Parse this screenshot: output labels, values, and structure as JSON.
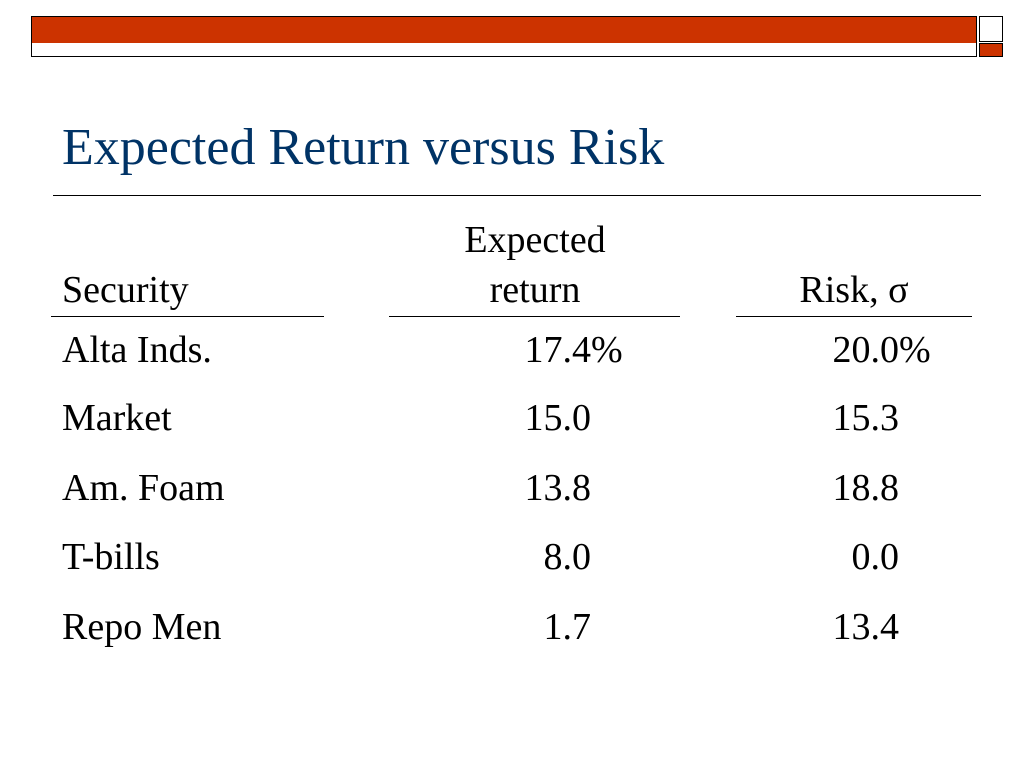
{
  "slide": {
    "title": "Expected Return versus Risk",
    "accent_color": "#cc3300",
    "title_color": "#003366"
  },
  "table": {
    "headers": {
      "security": "Security",
      "expected_line1": "Expected",
      "expected_line2": "return",
      "risk": "Risk, σ"
    },
    "rows": [
      {
        "security": "Alta Inds.",
        "expected_return": "17.4",
        "risk": "20.0",
        "suffix": "%"
      },
      {
        "security": "Market",
        "expected_return": "15.0",
        "risk": "15.3",
        "suffix": ""
      },
      {
        "security": "Am. Foam",
        "expected_return": "13.8",
        "risk": "18.8",
        "suffix": ""
      },
      {
        "security": "T-bills",
        "expected_return": "8.0",
        "risk": "0.0",
        "suffix": ""
      },
      {
        "security": "Repo Men",
        "expected_return": "1.7",
        "risk": "13.4",
        "suffix": ""
      }
    ]
  }
}
